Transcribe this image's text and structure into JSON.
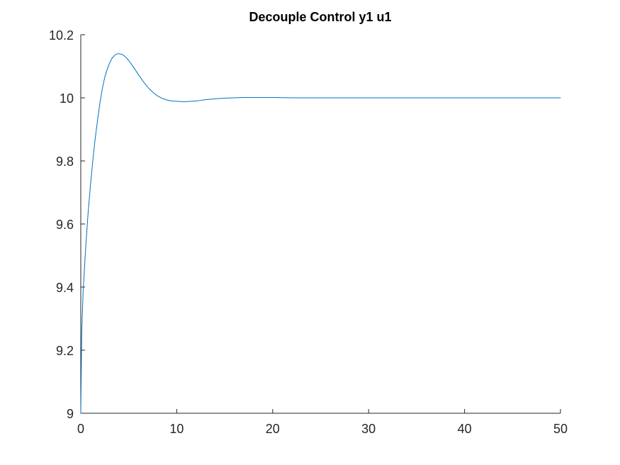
{
  "chart_data": {
    "type": "line",
    "title": "Decouple Control y1 u1",
    "xlabel": "",
    "ylabel": "",
    "xlim": [
      0,
      50
    ],
    "ylim": [
      9,
      10.2
    ],
    "xticks": [
      0,
      10,
      20,
      30,
      40,
      50
    ],
    "yticks": [
      9,
      9.2,
      9.4,
      9.6,
      9.8,
      10,
      10.2
    ],
    "xtick_labels": [
      "0",
      "10",
      "20",
      "30",
      "40",
      "50"
    ],
    "ytick_labels": [
      "9",
      "9.2",
      "9.4",
      "9.6",
      "9.8",
      "10",
      "10.2"
    ],
    "grid": false,
    "legend": "none",
    "colors": {
      "line": "#0072BD",
      "axis": "#262626",
      "background": "#ffffff"
    },
    "series": [
      {
        "x": [
          0,
          0.1,
          0.25,
          0.5,
          0.75,
          1,
          1.25,
          1.5,
          1.75,
          2,
          2.25,
          2.5,
          2.75,
          3,
          3.25,
          3.5,
          3.75,
          4,
          4.25,
          4.5,
          4.75,
          5,
          5.5,
          6,
          6.5,
          7,
          7.5,
          8,
          8.5,
          9,
          9.5,
          10,
          10.5,
          11,
          11.5,
          12,
          12.5,
          13,
          14,
          15,
          16,
          17,
          18,
          19,
          20,
          22,
          24,
          26,
          28,
          30,
          35,
          40,
          45,
          50
        ],
        "y": [
          9.0,
          9.26,
          9.39,
          9.52,
          9.63,
          9.72,
          9.8,
          9.87,
          9.93,
          9.985,
          10.03,
          10.065,
          10.09,
          10.11,
          10.125,
          10.134,
          10.139,
          10.14,
          10.138,
          10.134,
          10.127,
          10.118,
          10.097,
          10.074,
          10.052,
          10.033,
          10.018,
          10.006,
          9.998,
          9.993,
          9.99,
          9.989,
          9.988,
          9.988,
          9.989,
          9.99,
          9.992,
          9.994,
          9.997,
          9.999,
          10.0,
          10.001,
          10.001,
          10.001,
          10.001,
          10.0,
          10.0,
          10.0,
          10.0,
          10.0,
          10.0,
          10.0,
          10.0,
          10.0
        ]
      }
    ]
  }
}
